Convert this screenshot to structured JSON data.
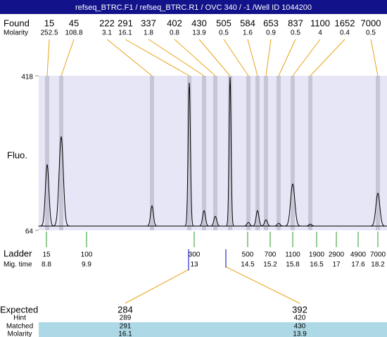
{
  "header": {
    "title": "refseq_BTRC.F1  / refseq_BTRC.R1  / OVC 340 / -1  /Well ID 1044200"
  },
  "found": {
    "label": "Found",
    "sizes": [
      15,
      45,
      222,
      291,
      337,
      402,
      430,
      505,
      584,
      653,
      837,
      1100,
      1652,
      7000
    ],
    "molarity_label": "Molarity",
    "molarity": [
      252.5,
      108.8,
      3.1,
      16.1,
      1.8,
      0.8,
      13.9,
      0.5,
      1.6,
      0.9,
      0.5,
      4,
      0.4,
      0.5
    ],
    "fluorescence": [
      214,
      278,
      120,
      402,
      109,
      96,
      415,
      82,
      109,
      88,
      80,
      170,
      78,
      149
    ]
  },
  "plot": {
    "ylabel": "Fluo.",
    "ylim": [
      64,
      418
    ],
    "yticks": [
      64,
      418
    ]
  },
  "ladder": {
    "label": "Ladder",
    "sizes": [
      15,
      100,
      300,
      500,
      700,
      1100,
      1900,
      2900,
      4900,
      7000
    ],
    "mig_time_label": "Mig. time",
    "mig_times": [
      8.8,
      9.9,
      13,
      14.5,
      15.2,
      15.8,
      16.5,
      17,
      17.6,
      18.2
    ]
  },
  "expected": {
    "row_labels": [
      "Expected",
      "Hint",
      "Matched",
      "Molarity"
    ],
    "expected": [
      284,
      392
    ],
    "hint": [
      289,
      420
    ],
    "matched": [
      291,
      430
    ],
    "molarity": [
      16.1,
      13.9
    ]
  }
}
